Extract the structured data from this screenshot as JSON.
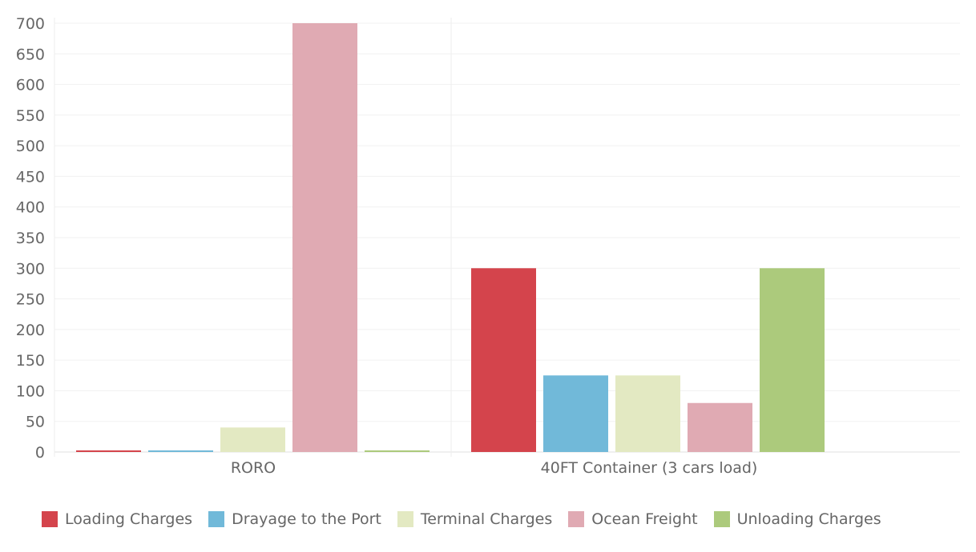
{
  "chart_data": {
    "type": "bar",
    "title": "",
    "xlabel": "",
    "ylabel": "",
    "categories": [
      "RORO",
      "40FT Container (3 cars load)"
    ],
    "ylim": [
      0,
      700
    ],
    "yticks": [
      0,
      50,
      100,
      150,
      200,
      250,
      300,
      350,
      400,
      450,
      500,
      550,
      600,
      650,
      700
    ],
    "grid": true,
    "legend_position": "bottom",
    "series": [
      {
        "name": "Loading Charges",
        "color": "#d4444c",
        "values": [
          0,
          300
        ]
      },
      {
        "name": "Drayage to the Port",
        "color": "#71b9d9",
        "values": [
          0,
          125
        ]
      },
      {
        "name": "Terminal Charges",
        "color": "#e3e9c2",
        "values": [
          40,
          125
        ]
      },
      {
        "name": "Ocean Freight",
        "color": "#e0aab3",
        "values": [
          700,
          80
        ]
      },
      {
        "name": "Unloading Charges",
        "color": "#acca7c",
        "values": [
          0,
          300
        ]
      }
    ]
  }
}
